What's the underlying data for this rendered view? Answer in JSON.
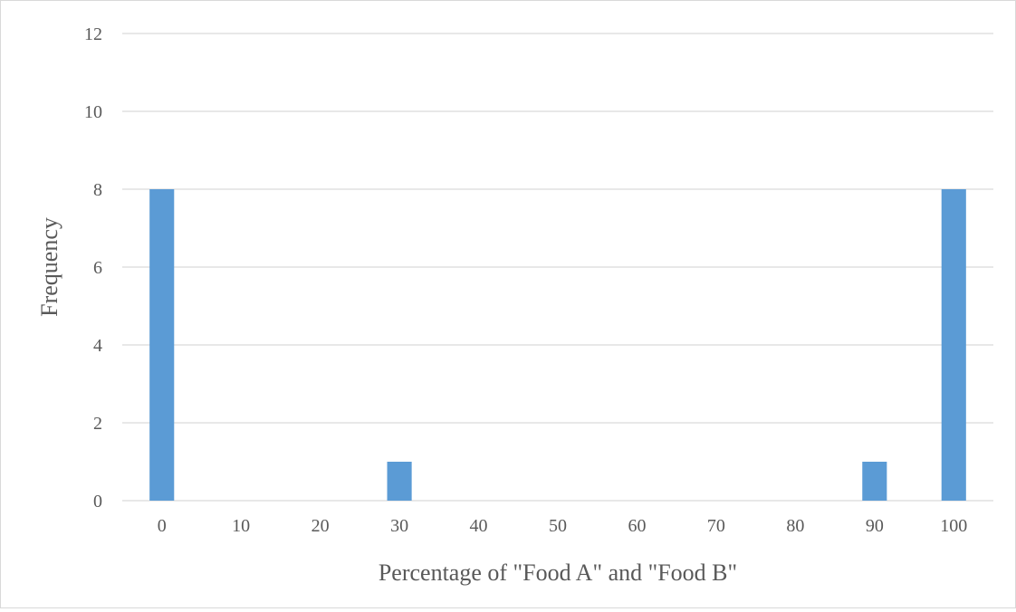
{
  "chart_data": {
    "type": "bar",
    "categories": [
      "0",
      "10",
      "20",
      "30",
      "40",
      "50",
      "60",
      "70",
      "80",
      "90",
      "100"
    ],
    "values": [
      8,
      0,
      0,
      1,
      0,
      0,
      0,
      0,
      0,
      1,
      8
    ],
    "title": "",
    "xlabel": "Percentage of \"Food A\" and \"Food B\"",
    "ylabel": "Frequency",
    "ylim": [
      0,
      12
    ],
    "yticks": [
      0,
      2,
      4,
      6,
      8,
      10,
      12
    ],
    "grid": true,
    "legend": "none",
    "bar_color": "#5b9bd5",
    "grid_color": "#d9d9d9"
  }
}
